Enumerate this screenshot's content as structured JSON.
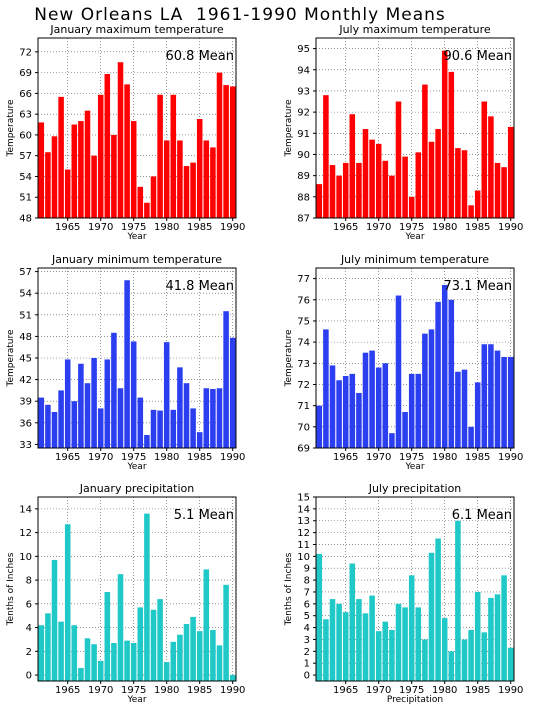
{
  "title": "New Orleans LA  1961-1990 Monthly Means",
  "colors": {
    "red": "#ff0000",
    "blue": "#2b3ff0",
    "teal": "#20c8c8"
  },
  "chart_data": [
    {
      "type": "bar",
      "title": "January maximum temperature",
      "xlabel": "Year",
      "ylabel": "Temperature",
      "mean_label": "60.8  Mean",
      "color": "red",
      "x": [
        1961,
        1962,
        1963,
        1964,
        1965,
        1966,
        1967,
        1968,
        1969,
        1970,
        1971,
        1972,
        1973,
        1974,
        1975,
        1976,
        1977,
        1978,
        1979,
        1980,
        1981,
        1982,
        1983,
        1984,
        1985,
        1986,
        1987,
        1988,
        1989,
        1990
      ],
      "values": [
        61.8,
        57.5,
        59.8,
        65.5,
        55.0,
        61.5,
        62.0,
        63.5,
        57.0,
        65.8,
        68.8,
        60.0,
        70.5,
        67.3,
        62.0,
        52.5,
        50.2,
        54.0,
        65.8,
        59.2,
        65.8,
        59.2,
        55.5,
        56.0,
        62.3,
        59.2,
        58.2,
        69.0,
        67.2,
        67.0
      ],
      "ylim": [
        48,
        74
      ],
      "yticks": [
        48,
        51,
        54,
        57,
        60,
        63,
        66,
        69,
        72
      ],
      "xlim": [
        1960.5,
        1990.5
      ],
      "xticks": [
        1965,
        1970,
        1975,
        1980,
        1985,
        1990
      ]
    },
    {
      "type": "bar",
      "title": "July maximum temperature",
      "xlabel": "Year",
      "ylabel": "Temperature",
      "mean_label": "90.6  Mean",
      "color": "red",
      "x": [
        1961,
        1962,
        1963,
        1964,
        1965,
        1966,
        1967,
        1968,
        1969,
        1970,
        1971,
        1972,
        1973,
        1974,
        1975,
        1976,
        1977,
        1978,
        1979,
        1980,
        1981,
        1982,
        1983,
        1984,
        1985,
        1986,
        1987,
        1988,
        1989,
        1990
      ],
      "values": [
        88.6,
        92.8,
        89.5,
        89.0,
        89.6,
        91.9,
        89.6,
        91.2,
        90.7,
        90.5,
        89.7,
        89.0,
        92.5,
        89.9,
        88.0,
        90.1,
        93.3,
        90.6,
        91.2,
        94.9,
        93.9,
        90.3,
        90.2,
        87.6,
        88.3,
        92.5,
        91.8,
        89.6,
        89.4,
        91.3
      ],
      "ylim": [
        87,
        95.5
      ],
      "yticks": [
        87,
        88,
        89,
        90,
        91,
        92,
        93,
        94,
        95
      ],
      "xlim": [
        1960.5,
        1990.5
      ],
      "xticks": [
        1965,
        1970,
        1975,
        1980,
        1985,
        1990
      ]
    },
    {
      "type": "bar",
      "title": "January minimum temperature",
      "xlabel": "Year",
      "ylabel": "Temperature",
      "mean_label": "41.8  Mean",
      "color": "blue",
      "x": [
        1961,
        1962,
        1963,
        1964,
        1965,
        1966,
        1967,
        1968,
        1969,
        1970,
        1971,
        1972,
        1973,
        1974,
        1975,
        1976,
        1977,
        1978,
        1979,
        1980,
        1981,
        1982,
        1983,
        1984,
        1985,
        1986,
        1987,
        1988,
        1989,
        1990
      ],
      "values": [
        39.5,
        38.5,
        37.5,
        40.5,
        44.8,
        39.0,
        44.2,
        41.5,
        45.0,
        38.0,
        44.8,
        48.5,
        40.8,
        55.8,
        47.3,
        39.5,
        34.3,
        37.8,
        37.7,
        47.2,
        37.8,
        43.7,
        41.5,
        38.0,
        34.7,
        40.8,
        40.7,
        40.8,
        51.5,
        47.8
      ],
      "ylim": [
        32.5,
        57.5
      ],
      "yticks": [
        33,
        36,
        39,
        42,
        45,
        48,
        51,
        54,
        57
      ],
      "xlim": [
        1960.5,
        1990.5
      ],
      "xticks": [
        1965,
        1970,
        1975,
        1980,
        1985,
        1990
      ]
    },
    {
      "type": "bar",
      "title": "July minimum temperature",
      "xlabel": "Year",
      "ylabel": "Temperature",
      "mean_label": "73.1  Mean",
      "color": "blue",
      "x": [
        1961,
        1962,
        1963,
        1964,
        1965,
        1966,
        1967,
        1968,
        1969,
        1970,
        1971,
        1972,
        1973,
        1974,
        1975,
        1976,
        1977,
        1978,
        1979,
        1980,
        1981,
        1982,
        1983,
        1984,
        1985,
        1986,
        1987,
        1988,
        1989,
        1990
      ],
      "values": [
        71.0,
        74.6,
        72.9,
        72.2,
        72.4,
        72.5,
        71.6,
        73.5,
        73.6,
        72.8,
        73.0,
        69.7,
        76.2,
        70.7,
        72.5,
        72.5,
        74.4,
        74.6,
        75.9,
        76.7,
        76.0,
        72.6,
        72.7,
        70.0,
        72.1,
        73.9,
        73.9,
        73.6,
        73.3,
        73.3
      ],
      "ylim": [
        69,
        77.5
      ],
      "yticks": [
        69,
        70,
        71,
        72,
        73,
        74,
        75,
        76,
        77
      ],
      "xlim": [
        1960.5,
        1990.5
      ],
      "xticks": [
        1965,
        1970,
        1975,
        1980,
        1985,
        1990
      ]
    },
    {
      "type": "bar",
      "title": "January precipitation",
      "xlabel": "Year",
      "ylabel": "Tenths of Inches",
      "mean_label": "5.1  Mean",
      "color": "teal",
      "x": [
        1961,
        1962,
        1963,
        1964,
        1965,
        1966,
        1967,
        1968,
        1969,
        1970,
        1971,
        1972,
        1973,
        1974,
        1975,
        1976,
        1977,
        1978,
        1979,
        1980,
        1981,
        1982,
        1983,
        1984,
        1985,
        1986,
        1987,
        1988,
        1989,
        1990
      ],
      "values": [
        4.2,
        5.2,
        9.7,
        4.5,
        12.7,
        4.2,
        0.6,
        3.1,
        2.6,
        1.2,
        7.0,
        2.7,
        8.5,
        2.9,
        2.7,
        5.7,
        13.6,
        5.5,
        6.4,
        1.1,
        2.8,
        3.4,
        4.3,
        4.9,
        3.7,
        8.9,
        3.8,
        2.5,
        7.6,
        0.0
      ],
      "ylim": [
        -0.5,
        15
      ],
      "yticks": [
        0,
        2,
        4,
        6,
        8,
        10,
        12,
        14
      ],
      "xlim": [
        1960.5,
        1990.5
      ],
      "xticks": [
        1965,
        1970,
        1975,
        1980,
        1985,
        1990
      ]
    },
    {
      "type": "bar",
      "title": "July precipitation",
      "xlabel": "Precipitation",
      "ylabel": "Tenths of Inches",
      "mean_label": "6.1  Mean",
      "color": "teal",
      "x": [
        1961,
        1962,
        1963,
        1964,
        1965,
        1966,
        1967,
        1968,
        1969,
        1970,
        1971,
        1972,
        1973,
        1974,
        1975,
        1976,
        1977,
        1978,
        1979,
        1980,
        1981,
        1982,
        1983,
        1984,
        1985,
        1986,
        1987,
        1988,
        1989,
        1990
      ],
      "values": [
        10.2,
        4.7,
        6.4,
        6.0,
        5.3,
        9.4,
        6.4,
        5.2,
        6.7,
        3.7,
        4.5,
        3.8,
        6.0,
        5.7,
        8.4,
        5.7,
        3.0,
        10.3,
        11.5,
        4.8,
        2.0,
        13.0,
        3.0,
        3.8,
        7.0,
        3.6,
        6.5,
        6.8,
        8.4,
        2.3
      ],
      "ylim": [
        -0.5,
        15
      ],
      "yticks": [
        0,
        1,
        2,
        3,
        4,
        5,
        6,
        7,
        8,
        9,
        10,
        11,
        12,
        13,
        14,
        15
      ],
      "xlim": [
        1960.5,
        1990.5
      ],
      "xticks": [
        1965,
        1970,
        1975,
        1980,
        1985,
        1990
      ]
    }
  ]
}
